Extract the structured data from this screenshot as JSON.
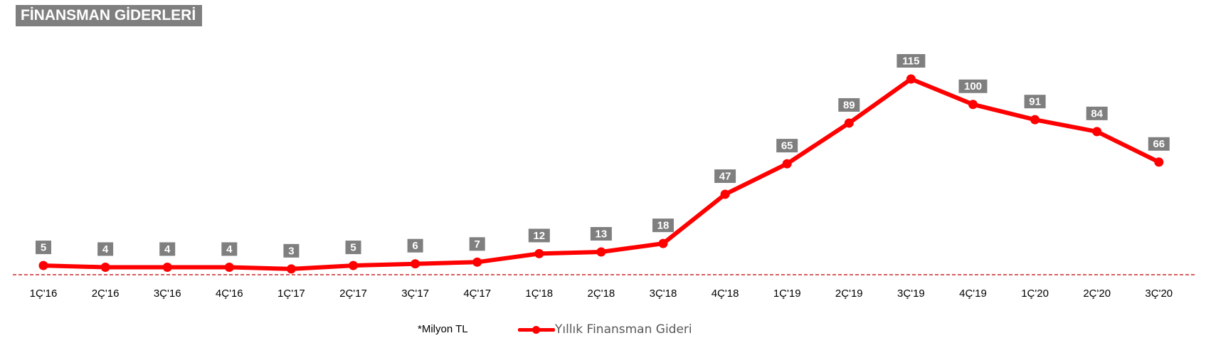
{
  "title": "FİNANSMAN GİDERLERİ",
  "footnote": "*Milyon TL",
  "colors": {
    "series": "#ff0000",
    "label_box": "#7f7f7f",
    "label_text": "#ffffff",
    "baseline": "#c00000",
    "tick_text": "#000000"
  },
  "chart_data": {
    "type": "line",
    "categories": [
      "1Ç'16",
      "2Ç'16",
      "3Ç'16",
      "4Ç'16",
      "1Ç'17",
      "2Ç'17",
      "3Ç'17",
      "4Ç'17",
      "1Ç'18",
      "2Ç'18",
      "3Ç'18",
      "4Ç'18",
      "1Ç'19",
      "2Ç'19",
      "3Ç'19",
      "4Ç'19",
      "1Ç'20",
      "2Ç'20",
      "3Ç'20"
    ],
    "series": [
      {
        "name": "Yıllık Finansman Gideri",
        "values": [
          5,
          4,
          4,
          4,
          3,
          5,
          6,
          7,
          12,
          13,
          18,
          47,
          65,
          89,
          115,
          100,
          91,
          84,
          66
        ]
      }
    ],
    "ylim": [
      0,
      115
    ],
    "data_labels": true,
    "grid": false,
    "baseline": "dashed",
    "legend": "bottom"
  }
}
